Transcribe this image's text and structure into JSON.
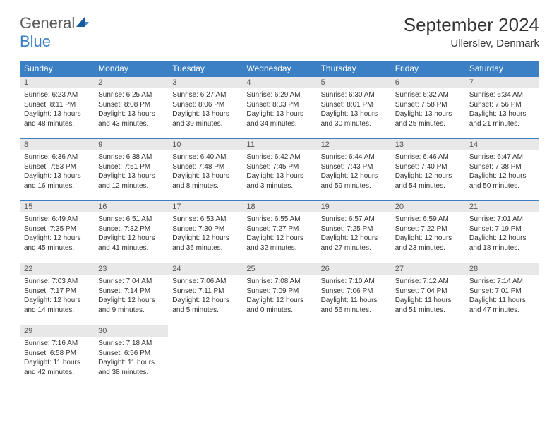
{
  "logo": {
    "word1": "General",
    "word2": "Blue"
  },
  "title": "September 2024",
  "location": "Ullerslev, Denmark",
  "colors": {
    "header_bg": "#3b7fc4",
    "header_text": "#ffffff",
    "daynum_bg": "#e8e8e8",
    "daynum_border": "#3b7fc4",
    "body_text": "#333333",
    "logo_gray": "#5a5a5a",
    "logo_blue": "#3b7fc4"
  },
  "day_headers": [
    "Sunday",
    "Monday",
    "Tuesday",
    "Wednesday",
    "Thursday",
    "Friday",
    "Saturday"
  ],
  "days": [
    {
      "n": "1",
      "sunrise": "Sunrise: 6:23 AM",
      "sunset": "Sunset: 8:11 PM",
      "daylight": "Daylight: 13 hours and 48 minutes."
    },
    {
      "n": "2",
      "sunrise": "Sunrise: 6:25 AM",
      "sunset": "Sunset: 8:08 PM",
      "daylight": "Daylight: 13 hours and 43 minutes."
    },
    {
      "n": "3",
      "sunrise": "Sunrise: 6:27 AM",
      "sunset": "Sunset: 8:06 PM",
      "daylight": "Daylight: 13 hours and 39 minutes."
    },
    {
      "n": "4",
      "sunrise": "Sunrise: 6:29 AM",
      "sunset": "Sunset: 8:03 PM",
      "daylight": "Daylight: 13 hours and 34 minutes."
    },
    {
      "n": "5",
      "sunrise": "Sunrise: 6:30 AM",
      "sunset": "Sunset: 8:01 PM",
      "daylight": "Daylight: 13 hours and 30 minutes."
    },
    {
      "n": "6",
      "sunrise": "Sunrise: 6:32 AM",
      "sunset": "Sunset: 7:58 PM",
      "daylight": "Daylight: 13 hours and 25 minutes."
    },
    {
      "n": "7",
      "sunrise": "Sunrise: 6:34 AM",
      "sunset": "Sunset: 7:56 PM",
      "daylight": "Daylight: 13 hours and 21 minutes."
    },
    {
      "n": "8",
      "sunrise": "Sunrise: 6:36 AM",
      "sunset": "Sunset: 7:53 PM",
      "daylight": "Daylight: 13 hours and 16 minutes."
    },
    {
      "n": "9",
      "sunrise": "Sunrise: 6:38 AM",
      "sunset": "Sunset: 7:51 PM",
      "daylight": "Daylight: 13 hours and 12 minutes."
    },
    {
      "n": "10",
      "sunrise": "Sunrise: 6:40 AM",
      "sunset": "Sunset: 7:48 PM",
      "daylight": "Daylight: 13 hours and 8 minutes."
    },
    {
      "n": "11",
      "sunrise": "Sunrise: 6:42 AM",
      "sunset": "Sunset: 7:45 PM",
      "daylight": "Daylight: 13 hours and 3 minutes."
    },
    {
      "n": "12",
      "sunrise": "Sunrise: 6:44 AM",
      "sunset": "Sunset: 7:43 PM",
      "daylight": "Daylight: 12 hours and 59 minutes."
    },
    {
      "n": "13",
      "sunrise": "Sunrise: 6:46 AM",
      "sunset": "Sunset: 7:40 PM",
      "daylight": "Daylight: 12 hours and 54 minutes."
    },
    {
      "n": "14",
      "sunrise": "Sunrise: 6:47 AM",
      "sunset": "Sunset: 7:38 PM",
      "daylight": "Daylight: 12 hours and 50 minutes."
    },
    {
      "n": "15",
      "sunrise": "Sunrise: 6:49 AM",
      "sunset": "Sunset: 7:35 PM",
      "daylight": "Daylight: 12 hours and 45 minutes."
    },
    {
      "n": "16",
      "sunrise": "Sunrise: 6:51 AM",
      "sunset": "Sunset: 7:32 PM",
      "daylight": "Daylight: 12 hours and 41 minutes."
    },
    {
      "n": "17",
      "sunrise": "Sunrise: 6:53 AM",
      "sunset": "Sunset: 7:30 PM",
      "daylight": "Daylight: 12 hours and 36 minutes."
    },
    {
      "n": "18",
      "sunrise": "Sunrise: 6:55 AM",
      "sunset": "Sunset: 7:27 PM",
      "daylight": "Daylight: 12 hours and 32 minutes."
    },
    {
      "n": "19",
      "sunrise": "Sunrise: 6:57 AM",
      "sunset": "Sunset: 7:25 PM",
      "daylight": "Daylight: 12 hours and 27 minutes."
    },
    {
      "n": "20",
      "sunrise": "Sunrise: 6:59 AM",
      "sunset": "Sunset: 7:22 PM",
      "daylight": "Daylight: 12 hours and 23 minutes."
    },
    {
      "n": "21",
      "sunrise": "Sunrise: 7:01 AM",
      "sunset": "Sunset: 7:19 PM",
      "daylight": "Daylight: 12 hours and 18 minutes."
    },
    {
      "n": "22",
      "sunrise": "Sunrise: 7:03 AM",
      "sunset": "Sunset: 7:17 PM",
      "daylight": "Daylight: 12 hours and 14 minutes."
    },
    {
      "n": "23",
      "sunrise": "Sunrise: 7:04 AM",
      "sunset": "Sunset: 7:14 PM",
      "daylight": "Daylight: 12 hours and 9 minutes."
    },
    {
      "n": "24",
      "sunrise": "Sunrise: 7:06 AM",
      "sunset": "Sunset: 7:11 PM",
      "daylight": "Daylight: 12 hours and 5 minutes."
    },
    {
      "n": "25",
      "sunrise": "Sunrise: 7:08 AM",
      "sunset": "Sunset: 7:09 PM",
      "daylight": "Daylight: 12 hours and 0 minutes."
    },
    {
      "n": "26",
      "sunrise": "Sunrise: 7:10 AM",
      "sunset": "Sunset: 7:06 PM",
      "daylight": "Daylight: 11 hours and 56 minutes."
    },
    {
      "n": "27",
      "sunrise": "Sunrise: 7:12 AM",
      "sunset": "Sunset: 7:04 PM",
      "daylight": "Daylight: 11 hours and 51 minutes."
    },
    {
      "n": "28",
      "sunrise": "Sunrise: 7:14 AM",
      "sunset": "Sunset: 7:01 PM",
      "daylight": "Daylight: 11 hours and 47 minutes."
    },
    {
      "n": "29",
      "sunrise": "Sunrise: 7:16 AM",
      "sunset": "Sunset: 6:58 PM",
      "daylight": "Daylight: 11 hours and 42 minutes."
    },
    {
      "n": "30",
      "sunrise": "Sunrise: 7:18 AM",
      "sunset": "Sunset: 6:56 PM",
      "daylight": "Daylight: 11 hours and 38 minutes."
    }
  ]
}
